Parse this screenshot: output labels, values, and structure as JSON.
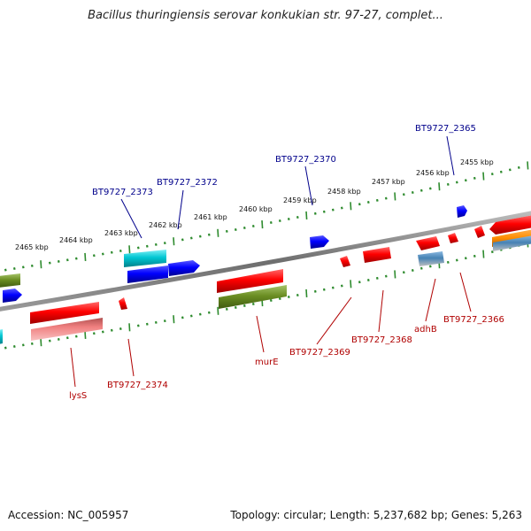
{
  "title": "Bacillus thuringiensis serovar konkukian str. 97-27, complet...",
  "footer": {
    "accession": "Accession: NC_005957",
    "topology": "Topology: circular; Length: 5,237,682 bp; Genes: 5,263"
  },
  "colors": {
    "backbone": "#8a8a8a",
    "tick": "#2e8b2e",
    "forward_label": "#00008b",
    "reverse_label": "#b00000",
    "red_gene": "#ff0000",
    "blue_gene": "#0000ff",
    "cyan_gene": "#00b8c8",
    "olive_gene": "#6b8e23",
    "pink_gene": "#f08080",
    "steel_gene": "#4682b4",
    "orange_gene": "#ff8c00"
  },
  "kbp_labels": [
    "2455 kbp",
    "2456 kbp",
    "2457 kbp",
    "2458 kbp",
    "2459 kbp",
    "2460 kbp",
    "2461 kbp",
    "2462 kbp",
    "2463 kbp",
    "2464 kbp",
    "2465 kbp"
  ],
  "forward_gene_labels": [
    "BT9727_2365",
    "BT9727_2370",
    "BT9727_2372",
    "BT9727_2373"
  ],
  "reverse_gene_labels": [
    "BT9727_2366",
    "adhB",
    "BT9727_2368",
    "BT9727_2369",
    "murE",
    "BT9727_2374",
    "lysS"
  ]
}
